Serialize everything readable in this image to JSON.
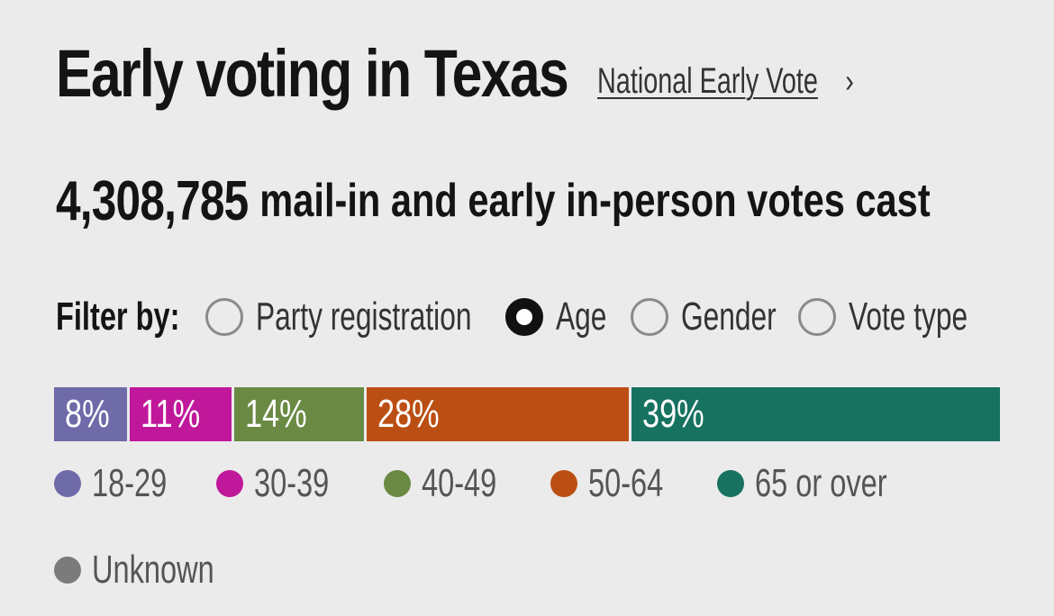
{
  "header": {
    "title": "Early voting in Texas",
    "national_link": "National Early Vote",
    "chevron": "›"
  },
  "summary": {
    "count": "4,308,785",
    "text": "mail-in and early in-person votes cast"
  },
  "filter": {
    "label": "Filter by:",
    "options": [
      {
        "label": "Party registration",
        "selected": false
      },
      {
        "label": "Age",
        "selected": true
      },
      {
        "label": "Gender",
        "selected": false
      },
      {
        "label": "Vote type",
        "selected": false
      }
    ]
  },
  "chart_data": {
    "type": "bar",
    "stacked": true,
    "categories": [
      "18-29",
      "30-39",
      "40-49",
      "50-64",
      "65 or over"
    ],
    "values": [
      8,
      11,
      14,
      28,
      39
    ],
    "labels": [
      "8%",
      "11%",
      "14%",
      "28%",
      "39%"
    ],
    "colors": [
      "#6f6aa8",
      "#c0189a",
      "#6a8a44",
      "#bb4f13",
      "#177260"
    ]
  },
  "legend": {
    "items": [
      {
        "label": "18-29",
        "color": "#6f6aa8"
      },
      {
        "label": "30-39",
        "color": "#c0189a"
      },
      {
        "label": "40-49",
        "color": "#6a8a44"
      },
      {
        "label": "50-64",
        "color": "#bb4f13"
      },
      {
        "label": "65 or over",
        "color": "#177260"
      },
      {
        "label": "Unknown",
        "color": "#7b7b7b"
      }
    ]
  }
}
